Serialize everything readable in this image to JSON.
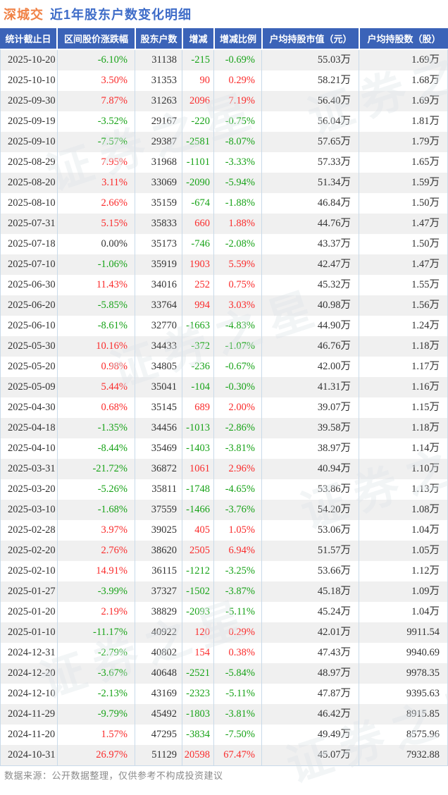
{
  "title": {
    "stock": "深城交",
    "rest": "近1年股东户数变化明细"
  },
  "footer": {
    "source_note": "数据来源：公开数据整理，仅供参考不构成投资建议"
  },
  "watermark": {
    "text": "证券之星"
  },
  "colors": {
    "up_red": "#fa2b2b",
    "down_green": "#18a318",
    "flat_dark": "#333333",
    "header_bg": "#3b63b8",
    "title_stock_orange": "#f08145",
    "title_rest_blue": "#3e6cc8",
    "row_stripe": "#f0f0f0",
    "grid_border": "#c9dae9"
  },
  "chart_data": {
    "type": "table",
    "title": "深城交 近1年股东户数变化明细",
    "columns": [
      "统计截止日",
      "区间股价涨跌幅",
      "股东户数",
      "增减",
      "增减比例",
      "户均持股市值（元）",
      "户均持股数（股）"
    ],
    "rows": [
      [
        "2025-10-20",
        "-6.10%",
        "31138",
        "-215",
        "-0.69%",
        "55.03万",
        "1.69万"
      ],
      [
        "2025-10-10",
        "3.50%",
        "31353",
        "90",
        "0.29%",
        "58.21万",
        "1.68万"
      ],
      [
        "2025-09-30",
        "7.87%",
        "31263",
        "2096",
        "7.19%",
        "56.40万",
        "1.69万"
      ],
      [
        "2025-09-19",
        "-3.52%",
        "29167",
        "-220",
        "-0.75%",
        "56.04万",
        "1.81万"
      ],
      [
        "2025-09-10",
        "-7.57%",
        "29387",
        "-2581",
        "-8.07%",
        "57.65万",
        "1.79万"
      ],
      [
        "2025-08-29",
        "7.95%",
        "31968",
        "-1101",
        "-3.33%",
        "57.33万",
        "1.65万"
      ],
      [
        "2025-08-20",
        "3.11%",
        "33069",
        "-2090",
        "-5.94%",
        "51.34万",
        "1.59万"
      ],
      [
        "2025-08-10",
        "2.66%",
        "35159",
        "-674",
        "-1.88%",
        "46.84万",
        "1.50万"
      ],
      [
        "2025-07-31",
        "5.15%",
        "35833",
        "660",
        "1.88%",
        "44.76万",
        "1.47万"
      ],
      [
        "2025-07-18",
        "0.00%",
        "35173",
        "-746",
        "-2.08%",
        "43.37万",
        "1.50万"
      ],
      [
        "2025-07-10",
        "-1.06%",
        "35919",
        "1903",
        "5.59%",
        "42.47万",
        "1.47万"
      ],
      [
        "2025-06-30",
        "11.43%",
        "34016",
        "252",
        "0.75%",
        "45.32万",
        "1.55万"
      ],
      [
        "2025-06-20",
        "-5.85%",
        "33764",
        "994",
        "3.03%",
        "40.98万",
        "1.56万"
      ],
      [
        "2025-06-10",
        "-8.61%",
        "32770",
        "-1663",
        "-4.83%",
        "44.90万",
        "1.24万"
      ],
      [
        "2025-05-30",
        "10.16%",
        "34433",
        "-372",
        "-1.07%",
        "46.76万",
        "1.18万"
      ],
      [
        "2025-05-20",
        "0.98%",
        "34805",
        "-236",
        "-0.67%",
        "42.00万",
        "1.17万"
      ],
      [
        "2025-05-09",
        "5.44%",
        "35041",
        "-104",
        "-0.30%",
        "41.31万",
        "1.16万"
      ],
      [
        "2025-04-30",
        "0.68%",
        "35145",
        "689",
        "2.00%",
        "39.07万",
        "1.15万"
      ],
      [
        "2025-04-18",
        "-1.35%",
        "34456",
        "-1013",
        "-2.86%",
        "39.58万",
        "1.18万"
      ],
      [
        "2025-04-10",
        "-8.44%",
        "35469",
        "-1403",
        "-3.81%",
        "38.97万",
        "1.14万"
      ],
      [
        "2025-03-31",
        "-21.72%",
        "36872",
        "1061",
        "2.96%",
        "40.94万",
        "1.10万"
      ],
      [
        "2025-03-20",
        "-5.26%",
        "35811",
        "-1748",
        "-4.65%",
        "53.86万",
        "1.13万"
      ],
      [
        "2025-03-10",
        "-1.68%",
        "37559",
        "-1466",
        "-3.76%",
        "54.20万",
        "1.08万"
      ],
      [
        "2025-02-28",
        "3.97%",
        "39025",
        "405",
        "1.05%",
        "53.06万",
        "1.04万"
      ],
      [
        "2025-02-20",
        "2.76%",
        "38620",
        "2505",
        "6.94%",
        "51.57万",
        "1.05万"
      ],
      [
        "2025-02-10",
        "14.91%",
        "36115",
        "-1212",
        "-3.25%",
        "53.66万",
        "1.12万"
      ],
      [
        "2025-01-27",
        "-3.99%",
        "37327",
        "-1502",
        "-3.87%",
        "45.18万",
        "1.09万"
      ],
      [
        "2025-01-20",
        "2.19%",
        "38829",
        "-2093",
        "-5.11%",
        "45.24万",
        "1.04万"
      ],
      [
        "2025-01-10",
        "-11.17%",
        "40922",
        "120",
        "0.29%",
        "42.01万",
        "9911.54"
      ],
      [
        "2024-12-31",
        "-2.79%",
        "40802",
        "154",
        "0.38%",
        "47.43万",
        "9940.69"
      ],
      [
        "2024-12-20",
        "-3.67%",
        "40648",
        "-2521",
        "-5.84%",
        "48.97万",
        "9978.35"
      ],
      [
        "2024-12-10",
        "-2.13%",
        "43169",
        "-2323",
        "-5.11%",
        "47.87万",
        "9395.63"
      ],
      [
        "2024-11-29",
        "-9.79%",
        "45492",
        "-1803",
        "-3.81%",
        "46.42万",
        "8915.85"
      ],
      [
        "2024-11-20",
        "1.57%",
        "47295",
        "-3834",
        "-7.50%",
        "49.49万",
        "8575.96"
      ],
      [
        "2024-10-31",
        "26.97%",
        "51129",
        "20598",
        "67.47%",
        "45.07万",
        "7932.88"
      ]
    ]
  }
}
